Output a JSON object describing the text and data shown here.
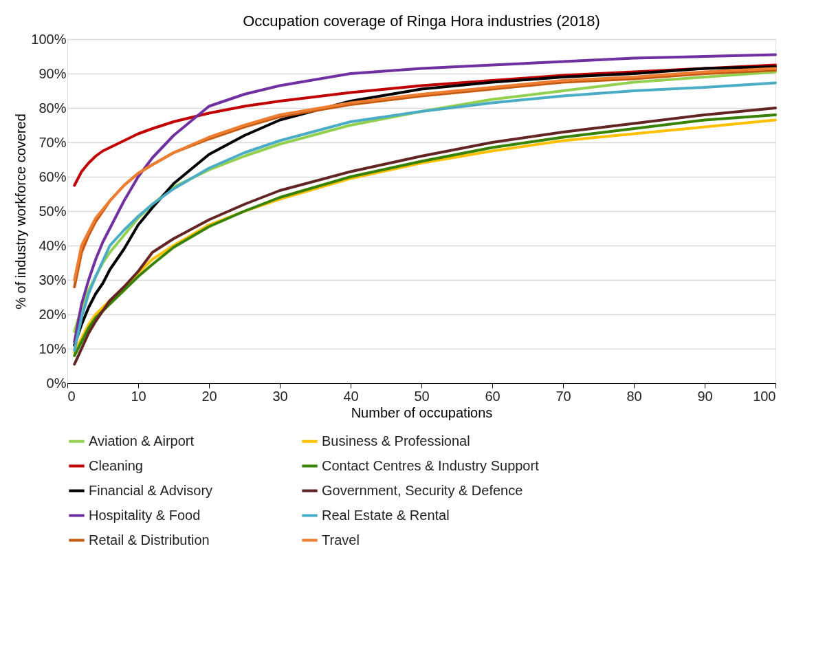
{
  "chart_data": {
    "type": "line",
    "title": "Occupation coverage of Ringa Hora industries (2018)",
    "xlabel": "Number of occupations",
    "ylabel": "% of industry workforce covered",
    "x": [
      1,
      2,
      3,
      4,
      5,
      6,
      8,
      10,
      12,
      15,
      20,
      25,
      30,
      40,
      50,
      60,
      70,
      80,
      90,
      100
    ],
    "xlim": [
      0,
      100
    ],
    "xticks": [
      0,
      10,
      20,
      30,
      40,
      50,
      60,
      70,
      80,
      90,
      100
    ],
    "ylim": [
      0,
      100
    ],
    "yticks": [
      {
        "value": 0,
        "label": "0%"
      },
      {
        "value": 10,
        "label": "10%"
      },
      {
        "value": 20,
        "label": "20%"
      },
      {
        "value": 30,
        "label": "30%"
      },
      {
        "value": 40,
        "label": "40%"
      },
      {
        "value": 50,
        "label": "50%"
      },
      {
        "value": 60,
        "label": "60%"
      },
      {
        "value": 70,
        "label": "70%"
      },
      {
        "value": 80,
        "label": "80%"
      },
      {
        "value": 90,
        "label": "90%"
      },
      {
        "value": 100,
        "label": "100%"
      }
    ],
    "grid": "y",
    "legend": "bottom",
    "marker": "none",
    "line_style": "solid",
    "series": [
      {
        "name": "Aviation & Airport",
        "color": "#92d050",
        "values": [
          15,
          22,
          27,
          31,
          35,
          38,
          43,
          48,
          52,
          57,
          62,
          66,
          69.5,
          75,
          79,
          82.5,
          85,
          87.5,
          89,
          90.5
        ]
      },
      {
        "name": "Business & Professional",
        "color": "#ffc000",
        "values": [
          9,
          13,
          17,
          20,
          22,
          24,
          27,
          32,
          36,
          40,
          46,
          50,
          53.5,
          59.5,
          64,
          67.5,
          70.5,
          72.5,
          74.5,
          76.5
        ]
      },
      {
        "name": "Cleaning",
        "color": "#c00000",
        "values": [
          57.5,
          61.5,
          64,
          66,
          67.5,
          68.5,
          70.5,
          72.5,
          74,
          76,
          78.5,
          80.5,
          82,
          84.5,
          86.5,
          88,
          89.5,
          90.5,
          91.5,
          92.5
        ]
      },
      {
        "name": "Contact Centres & Industry Support",
        "color": "#378200",
        "values": [
          8,
          12,
          16,
          19,
          21,
          23,
          27,
          31,
          34.5,
          39.5,
          45.5,
          50,
          54,
          60,
          64.5,
          68.5,
          71.5,
          74,
          76.5,
          78
        ]
      },
      {
        "name": "Financial & Advisory",
        "color": "#000000",
        "values": [
          11,
          17,
          22,
          26,
          29,
          33,
          39,
          46,
          51,
          58,
          66.5,
          72,
          76.5,
          82,
          85.5,
          87.5,
          89,
          90,
          91.5,
          92
        ]
      },
      {
        "name": "Government, Security & Defence",
        "color": "#632523",
        "values": [
          5.5,
          10,
          14.5,
          18,
          21,
          24,
          28,
          32.5,
          38,
          42,
          47.5,
          52,
          56,
          61.5,
          66,
          70,
          73,
          75.5,
          78,
          80
        ]
      },
      {
        "name": "Hospitality & Food",
        "color": "#7030a0",
        "values": [
          12,
          23,
          30,
          36,
          41,
          45,
          53,
          60,
          65.5,
          72,
          80.5,
          84,
          86.5,
          90,
          91.5,
          92.5,
          93.5,
          94.5,
          95,
          95.5
        ]
      },
      {
        "name": "Real Estate & Rental",
        "color": "#4bacc6",
        "values": [
          9.5,
          19,
          26,
          31,
          35.5,
          40,
          44.5,
          48.5,
          52,
          56.5,
          62.5,
          67,
          70.5,
          76,
          79,
          81.5,
          83.5,
          85,
          86,
          87.3
        ]
      },
      {
        "name": "Retail & Distribution",
        "color": "#c55a11",
        "values": [
          28,
          38,
          43,
          47,
          50,
          53,
          57.5,
          61,
          63.5,
          67,
          71,
          74.5,
          77.5,
          81,
          83.5,
          85.5,
          87.5,
          88.5,
          90,
          91
        ]
      },
      {
        "name": "Travel",
        "color": "#ed7d31",
        "values": [
          30,
          40,
          44,
          48,
          50.5,
          53,
          57.5,
          61,
          63.5,
          67,
          71.5,
          75,
          78,
          81.5,
          84,
          86,
          88,
          89,
          90.5,
          91.5
        ]
      }
    ]
  }
}
